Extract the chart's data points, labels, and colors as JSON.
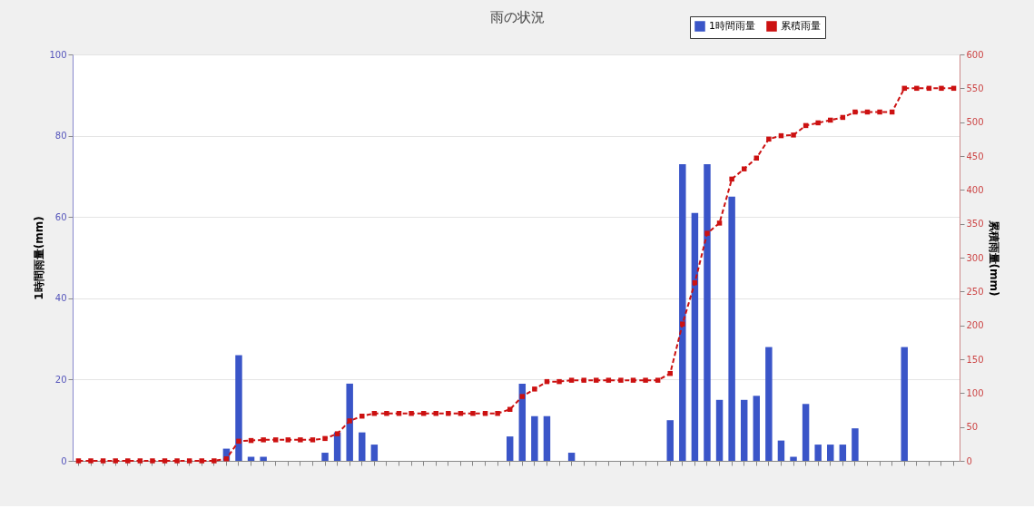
{
  "chart_data": {
    "type": "bar",
    "title": "雨の状況",
    "ylabel": "1時間雨量(mm)",
    "y2label": "累積雨量(mm)",
    "categories": [
      null,
      null,
      null,
      null,
      null,
      null,
      null,
      null,
      null,
      null,
      null,
      null,
      null,
      null,
      null,
      null,
      null,
      null,
      null,
      null,
      null,
      null,
      null,
      null,
      null,
      null,
      null,
      null,
      null,
      null,
      null,
      null,
      null,
      null,
      null,
      null,
      null,
      null,
      null,
      null,
      null,
      null,
      null,
      null,
      null,
      null,
      null,
      null,
      null,
      null,
      null,
      null,
      null,
      null,
      null,
      null,
      null,
      null,
      null,
      null,
      null,
      null,
      null,
      null,
      null,
      null,
      null,
      null,
      null,
      null,
      null,
      null
    ],
    "series": [
      {
        "name": "1時間雨量",
        "color": "#3a55c8",
        "values": [
          null,
          null,
          null,
          null,
          null,
          null,
          null,
          null,
          null,
          null,
          null,
          null,
          3,
          26,
          1,
          1,
          null,
          null,
          null,
          null,
          2,
          7,
          19,
          7,
          4,
          null,
          null,
          null,
          null,
          null,
          null,
          null,
          null,
          null,
          null,
          6,
          19,
          11,
          11,
          null,
          2,
          null,
          null,
          null,
          null,
          null,
          null,
          null,
          10,
          73,
          61,
          73,
          15,
          65,
          15,
          16,
          28,
          5,
          1,
          14,
          4,
          4,
          4,
          8,
          null,
          null,
          null,
          28,
          null,
          null,
          null,
          null
        ]
      },
      {
        "name": "累積雨量",
        "type": "line",
        "axis": "y2",
        "color": "#cc1111",
        "marker": "square",
        "line_style": "dashed",
        "values": [
          0,
          0,
          0,
          0,
          0,
          0,
          0,
          0,
          0,
          0,
          0,
          0,
          3,
          29,
          30,
          31,
          31,
          31,
          31,
          31,
          33,
          40,
          59,
          66,
          70,
          70,
          70,
          70,
          70,
          70,
          70,
          70,
          70,
          70,
          70,
          76,
          95,
          106,
          117,
          117,
          119,
          119,
          119,
          119,
          119,
          119,
          119,
          119,
          129,
          202,
          263,
          336,
          351,
          416,
          431,
          447,
          475,
          480,
          481,
          495,
          499,
          503,
          507,
          515,
          515,
          515,
          515,
          550,
          550,
          550,
          550,
          550
        ]
      }
    ],
    "ylim": [
      0,
      100
    ],
    "yticks": [
      0,
      20,
      40,
      60,
      80,
      100
    ],
    "y2lim": [
      0,
      600
    ],
    "y2ticks": [
      0,
      50,
      100,
      150,
      200,
      250,
      300,
      350,
      400,
      450,
      500,
      550,
      600
    ],
    "grid": "y",
    "legend": "top right"
  }
}
